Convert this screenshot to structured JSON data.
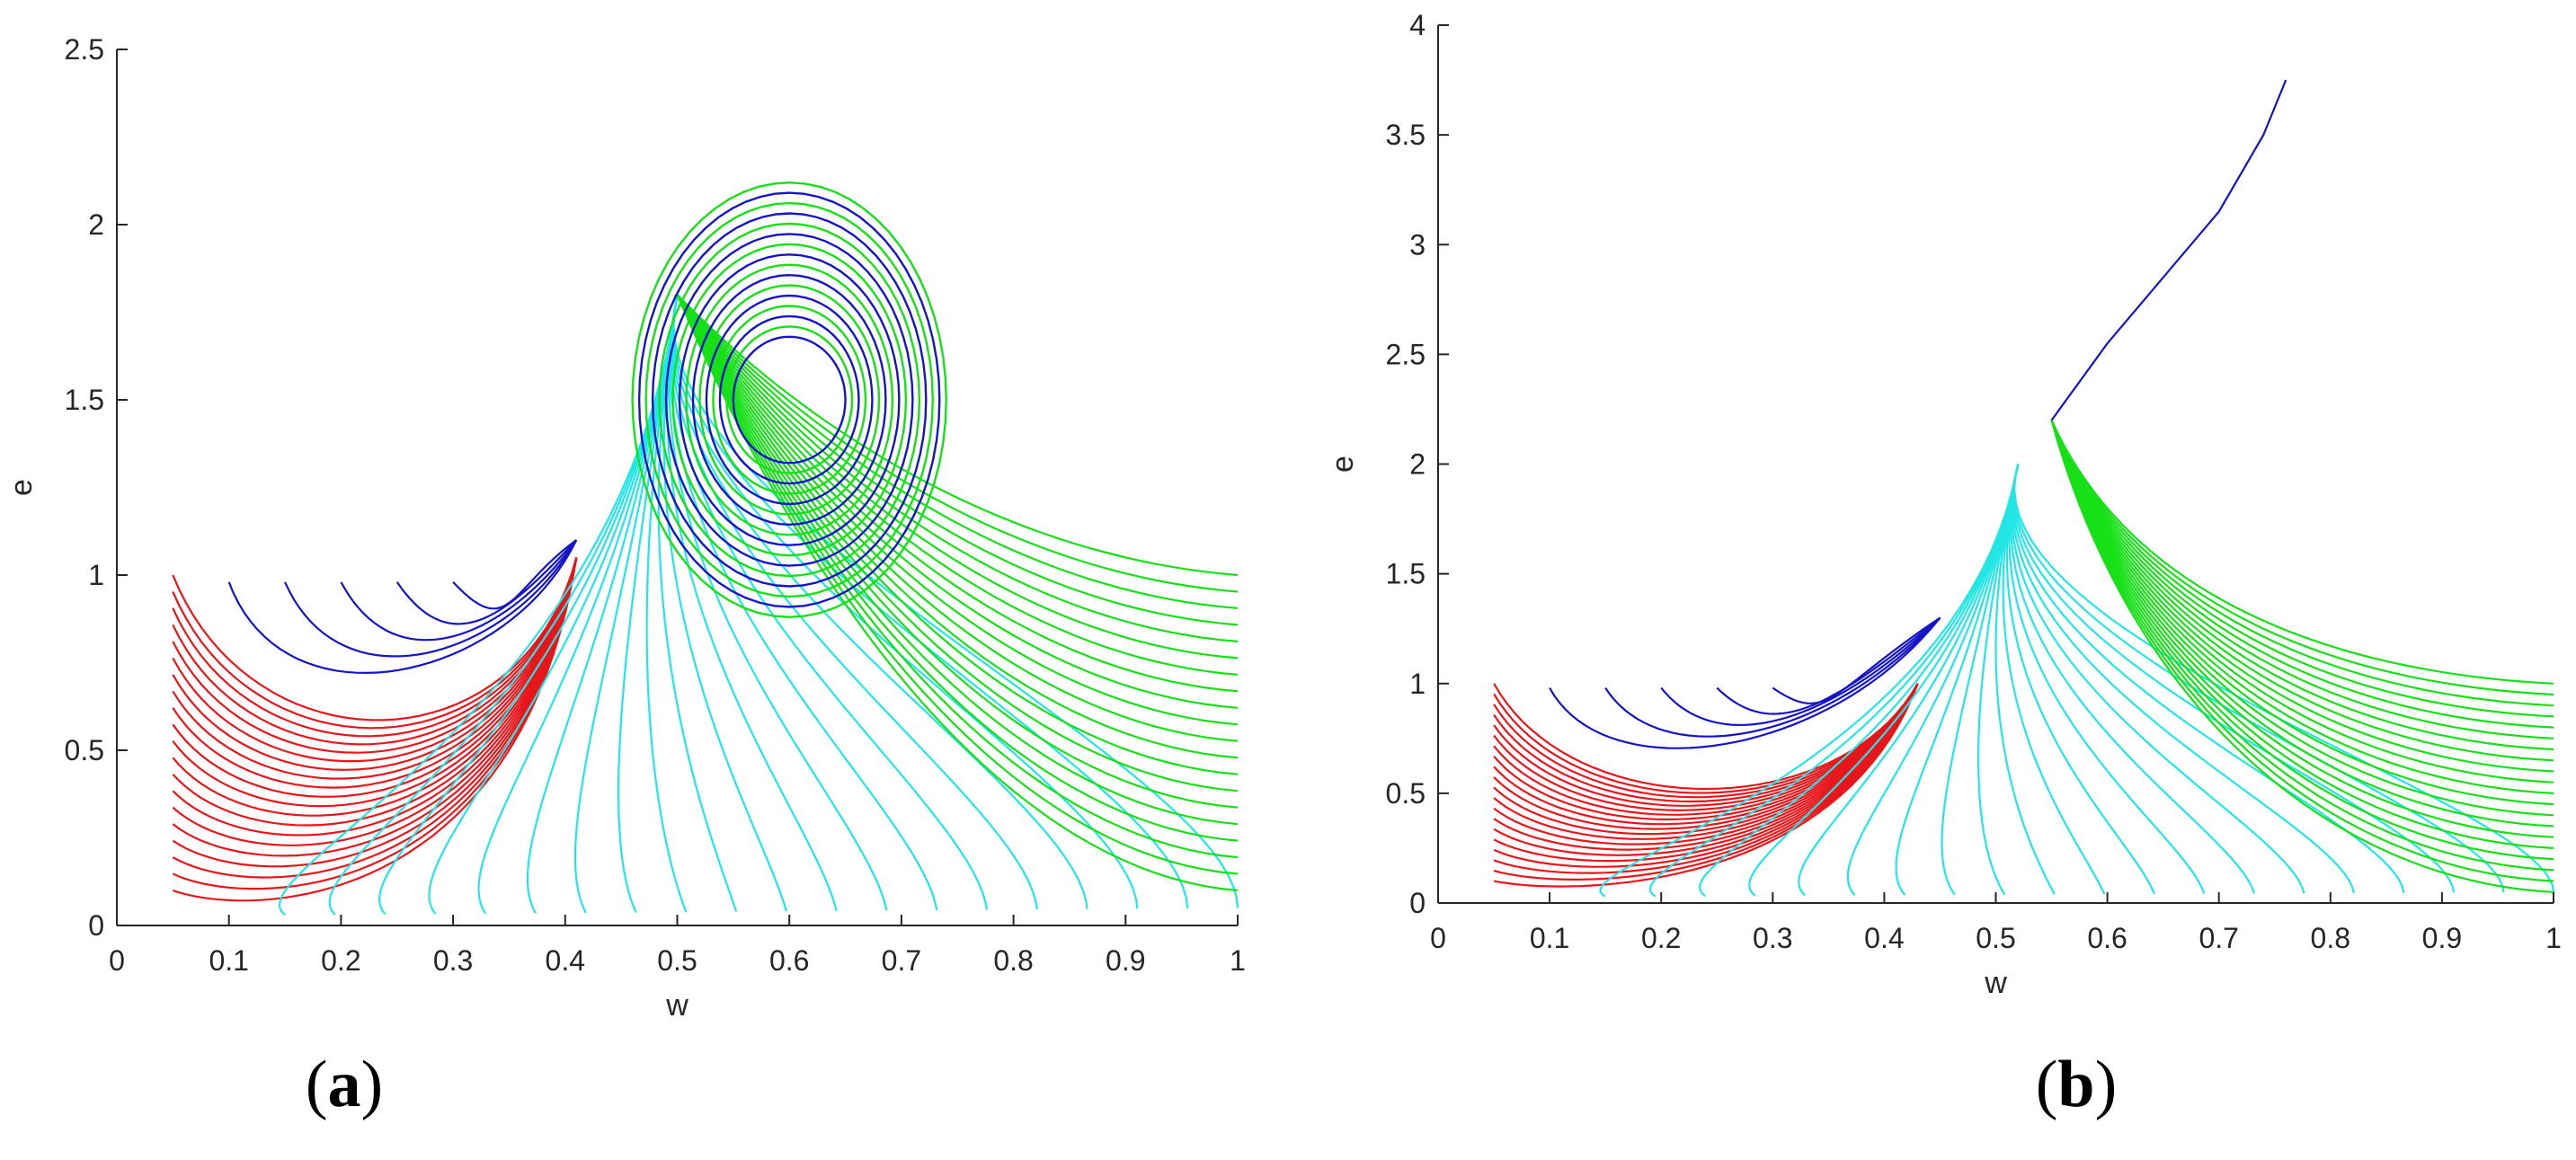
{
  "panels": {
    "a": {
      "label_open": "(",
      "label_letter": "a",
      "label_close": ")"
    },
    "b": {
      "label_open": "(",
      "label_letter": "b",
      "label_close": ")"
    }
  },
  "chart_data": [
    {
      "type": "line",
      "panel": "a",
      "xlabel": "w",
      "ylabel": "e",
      "xlim": [
        0,
        1
      ],
      "ylim": [
        0,
        2.5
      ],
      "xticks": [
        "0",
        "0.1",
        "0.2",
        "0.3",
        "0.4",
        "0.5",
        "0.6",
        "0.7",
        "0.8",
        "0.9",
        "1"
      ],
      "yticks": [
        "0",
        "0.5",
        "1",
        "1.5",
        "2",
        "2.5"
      ],
      "grid": false,
      "colors": {
        "red": "#e8161b",
        "cyan": "#22e6e6",
        "green": "#16e016",
        "blue": "#1414c8"
      },
      "families": [
        {
          "color": "red",
          "start_x": [
            0.05,
            0.05
          ],
          "start_y": [
            0.1,
            1.0
          ],
          "min_y": [
            0.04,
            0.44
          ],
          "converge_x": 0.41,
          "converge_y": 1.05
        },
        {
          "color": "blue",
          "start_x": [
            0.1,
            0.3
          ],
          "start_y": [
            0.98,
            0.98
          ],
          "min_y": [
            0.7,
            0.96
          ],
          "converge_x": 0.41,
          "converge_y": 1.1
        },
        {
          "color": "cyan",
          "start_x": [
            0.15,
            1.0
          ],
          "start_y": [
            0.03,
            0.05
          ],
          "converge_x": 0.5,
          "converge_y": 1.8
        },
        {
          "color": "green",
          "start_x": [
            1.0,
            1.0
          ],
          "start_y": [
            0.1,
            1.0
          ],
          "converge_x": 0.5,
          "converge_y": 1.8
        }
      ],
      "limit_cycle": {
        "center": [
          0.6,
          1.5
        ],
        "radius_w": [
          0.05,
          0.14
        ],
        "radius_e": [
          0.18,
          0.62
        ]
      }
    },
    {
      "type": "line",
      "panel": "b",
      "xlabel": "w",
      "ylabel": "e",
      "xlim": [
        0,
        1
      ],
      "ylim": [
        0,
        4
      ],
      "xticks": [
        "0",
        "0.1",
        "0.2",
        "0.3",
        "0.4",
        "0.5",
        "0.6",
        "0.7",
        "0.8",
        "0.9",
        "1"
      ],
      "yticks": [
        "0",
        "0.5",
        "1",
        "1.5",
        "2",
        "2.5",
        "3",
        "3.5",
        "4"
      ],
      "grid": false,
      "colors": {
        "red": "#e8161b",
        "cyan": "#22e6e6",
        "green": "#16e016",
        "blue": "#1414c8"
      },
      "families": [
        {
          "color": "red",
          "start_x": [
            0.05,
            0.05
          ],
          "start_y": [
            0.1,
            1.0
          ],
          "min_y": [
            0.05,
            0.36
          ],
          "converge_x": 0.43,
          "converge_y": 1.0
        },
        {
          "color": "blue",
          "start_x": [
            0.1,
            0.3
          ],
          "start_y": [
            0.98,
            0.98
          ],
          "min_y": [
            0.66,
            0.96
          ],
          "converge_x": 0.45,
          "converge_y": 1.3
        },
        {
          "color": "cyan",
          "start_x": [
            0.15,
            1.0
          ],
          "start_y": [
            0.03,
            0.05
          ],
          "converge_x": 0.52,
          "converge_y": 2.0
        },
        {
          "color": "green",
          "start_x": [
            1.0,
            1.0
          ],
          "start_y": [
            0.05,
            1.0
          ],
          "converge_x": 0.55,
          "converge_y": 2.2
        }
      ],
      "escape_curve": {
        "x": [
          0.55,
          0.6,
          0.65,
          0.7,
          0.74,
          0.76
        ],
        "y": [
          2.2,
          2.55,
          2.85,
          3.15,
          3.5,
          3.75
        ]
      }
    }
  ]
}
